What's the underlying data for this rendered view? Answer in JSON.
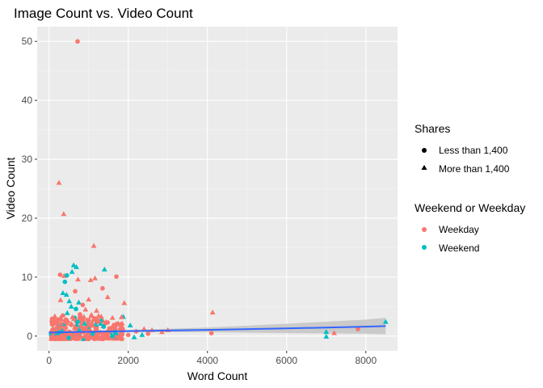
{
  "chart_data": {
    "type": "scatter",
    "title": "Image Count vs. Video Count",
    "xlabel": "Word Count",
    "ylabel": "Video Count",
    "xlim": [
      -300,
      8800
    ],
    "ylim": [
      -2.5,
      52.5
    ],
    "xticks": [
      "0",
      "2000",
      "4000",
      "6000",
      "8000"
    ],
    "xtick_values": [
      0,
      2000,
      4000,
      6000,
      8000
    ],
    "yticks": [
      "0",
      "10",
      "20",
      "30",
      "40",
      "50"
    ],
    "ytick_values": [
      0,
      10,
      20,
      30,
      40,
      50
    ],
    "grid": true,
    "background": "#ebebeb",
    "legend_position": "right",
    "legends": [
      {
        "title": "Shares",
        "entries": [
          {
            "label": "Less than 1,400",
            "shape": "circle"
          },
          {
            "label": "More than 1,400",
            "shape": "triangle"
          }
        ]
      },
      {
        "title": "Weekend or Weekday",
        "entries": [
          {
            "label": "Weekday",
            "color": "#F8766D"
          },
          {
            "label": "Weekend",
            "color": "#00BFC4"
          }
        ]
      }
    ],
    "colors": {
      "Weekday": "#F8766D",
      "Weekend": "#00BFC4",
      "trend": "#3366FF",
      "ribbon": "#c4c4c4"
    },
    "points": [
      {
        "x": 720,
        "y": 50,
        "shape": "circle",
        "group": "Weekday"
      },
      {
        "x": 250,
        "y": 26,
        "shape": "triangle",
        "group": "Weekday"
      },
      {
        "x": 370,
        "y": 20.7,
        "shape": "triangle",
        "group": "Weekday"
      },
      {
        "x": 1130,
        "y": 15.3,
        "shape": "triangle",
        "group": "Weekday"
      },
      {
        "x": 620,
        "y": 12,
        "shape": "triangle",
        "group": "Weekend"
      },
      {
        "x": 690,
        "y": 11.7,
        "shape": "triangle",
        "group": "Weekend"
      },
      {
        "x": 1400,
        "y": 11.3,
        "shape": "triangle",
        "group": "Weekend"
      },
      {
        "x": 580,
        "y": 10.9,
        "shape": "triangle",
        "group": "Weekend"
      },
      {
        "x": 280,
        "y": 10.4,
        "shape": "circle",
        "group": "Weekday"
      },
      {
        "x": 380,
        "y": 10.2,
        "shape": "triangle",
        "group": "Weekday"
      },
      {
        "x": 1700,
        "y": 10.1,
        "shape": "circle",
        "group": "Weekday"
      },
      {
        "x": 450,
        "y": 10.3,
        "shape": "circle",
        "group": "Weekend"
      },
      {
        "x": 1160,
        "y": 9.8,
        "shape": "triangle",
        "group": "Weekday"
      },
      {
        "x": 730,
        "y": 9.6,
        "shape": "triangle",
        "group": "Weekday"
      },
      {
        "x": 400,
        "y": 9.2,
        "shape": "circle",
        "group": "Weekend"
      },
      {
        "x": 1050,
        "y": 9.5,
        "shape": "triangle",
        "group": "Weekday"
      },
      {
        "x": 1350,
        "y": 8.1,
        "shape": "circle",
        "group": "Weekday"
      },
      {
        "x": 660,
        "y": 7.6,
        "shape": "circle",
        "group": "Weekday"
      },
      {
        "x": 350,
        "y": 7.3,
        "shape": "triangle",
        "group": "Weekend"
      },
      {
        "x": 440,
        "y": 7.0,
        "shape": "triangle",
        "group": "Weekend"
      },
      {
        "x": 1480,
        "y": 6.6,
        "shape": "triangle",
        "group": "Weekday"
      },
      {
        "x": 1000,
        "y": 6.2,
        "shape": "triangle",
        "group": "Weekday"
      },
      {
        "x": 290,
        "y": 6.1,
        "shape": "triangle",
        "group": "Weekday"
      },
      {
        "x": 510,
        "y": 5.9,
        "shape": "triangle",
        "group": "Weekend"
      },
      {
        "x": 750,
        "y": 5.7,
        "shape": "triangle",
        "group": "Weekend"
      },
      {
        "x": 850,
        "y": 5.3,
        "shape": "circle",
        "group": "Weekday"
      },
      {
        "x": 560,
        "y": 5.0,
        "shape": "triangle",
        "group": "Weekend"
      },
      {
        "x": 1900,
        "y": 5.6,
        "shape": "triangle",
        "group": "Weekday"
      },
      {
        "x": 680,
        "y": 4.6,
        "shape": "circle",
        "group": "Weekend"
      },
      {
        "x": 920,
        "y": 4.5,
        "shape": "triangle",
        "group": "Weekday"
      },
      {
        "x": 1200,
        "y": 4.3,
        "shape": "triangle",
        "group": "Weekday"
      },
      {
        "x": 4130,
        "y": 4.0,
        "shape": "triangle",
        "group": "Weekday"
      },
      {
        "x": 460,
        "y": 3.9,
        "shape": "triangle",
        "group": "Weekend"
      },
      {
        "x": 780,
        "y": 3.7,
        "shape": "circle",
        "group": "Weekday"
      },
      {
        "x": 1070,
        "y": 3.6,
        "shape": "triangle",
        "group": "Weekday"
      },
      {
        "x": 350,
        "y": 3.5,
        "shape": "circle",
        "group": "Weekday"
      },
      {
        "x": 1320,
        "y": 3.3,
        "shape": "triangle",
        "group": "Weekday"
      },
      {
        "x": 590,
        "y": 3.2,
        "shape": "triangle",
        "group": "Weekday"
      },
      {
        "x": 1600,
        "y": 3.1,
        "shape": "triangle",
        "group": "Weekday"
      },
      {
        "x": 810,
        "y": 2.9,
        "shape": "triangle",
        "group": "Weekday"
      },
      {
        "x": 230,
        "y": 2.8,
        "shape": "circle",
        "group": "Weekday"
      },
      {
        "x": 1000,
        "y": 2.7,
        "shape": "circle",
        "group": "Weekday"
      },
      {
        "x": 1250,
        "y": 2.6,
        "shape": "triangle",
        "group": "Weekday"
      },
      {
        "x": 480,
        "y": 2.5,
        "shape": "triangle",
        "group": "Weekday"
      },
      {
        "x": 720,
        "y": 2.4,
        "shape": "circle",
        "group": "Weekend"
      },
      {
        "x": 1480,
        "y": 2.3,
        "shape": "circle",
        "group": "Weekday"
      },
      {
        "x": 300,
        "y": 2.2,
        "shape": "triangle",
        "group": "Weekday"
      },
      {
        "x": 900,
        "y": 2.1,
        "shape": "triangle",
        "group": "Weekend"
      },
      {
        "x": 1800,
        "y": 2.0,
        "shape": "triangle",
        "group": "Weekday"
      },
      {
        "x": 560,
        "y": 1.9,
        "shape": "circle",
        "group": "Weekday"
      },
      {
        "x": 1100,
        "y": 1.8,
        "shape": "triangle",
        "group": "Weekday"
      },
      {
        "x": 200,
        "y": 1.7,
        "shape": "triangle",
        "group": "Weekday"
      },
      {
        "x": 1380,
        "y": 1.6,
        "shape": "circle",
        "group": "Weekend"
      },
      {
        "x": 650,
        "y": 1.5,
        "shape": "triangle",
        "group": "Weekday"
      },
      {
        "x": 2050,
        "y": 1.8,
        "shape": "triangle",
        "group": "Weekend"
      },
      {
        "x": 1650,
        "y": 1.5,
        "shape": "circle",
        "group": "Weekday"
      },
      {
        "x": 420,
        "y": 1.4,
        "shape": "circle",
        "group": "Weekday"
      },
      {
        "x": 860,
        "y": 1.3,
        "shape": "circle",
        "group": "Weekday"
      },
      {
        "x": 1200,
        "y": 1.2,
        "shape": "circle",
        "group": "Weekday"
      },
      {
        "x": 150,
        "y": 1.1,
        "shape": "circle",
        "group": "Weekday"
      },
      {
        "x": 2400,
        "y": 1.2,
        "shape": "triangle",
        "group": "Weekday"
      },
      {
        "x": 2600,
        "y": 1.0,
        "shape": "triangle",
        "group": "Weekday"
      },
      {
        "x": 760,
        "y": 1.0,
        "shape": "triangle",
        "group": "Weekend"
      },
      {
        "x": 1550,
        "y": 0.9,
        "shape": "triangle",
        "group": "Weekday"
      },
      {
        "x": 330,
        "y": 0.9,
        "shape": "triangle",
        "group": "Weekend"
      },
      {
        "x": 2200,
        "y": 0.8,
        "shape": "circle",
        "group": "Weekday"
      },
      {
        "x": 980,
        "y": 0.8,
        "shape": "circle",
        "group": "Weekday"
      },
      {
        "x": 2850,
        "y": 0.7,
        "shape": "triangle",
        "group": "Weekday"
      },
      {
        "x": 1850,
        "y": 0.7,
        "shape": "circle",
        "group": "Weekday"
      },
      {
        "x": 520,
        "y": 0.7,
        "shape": "circle",
        "group": "Weekday"
      },
      {
        "x": 3000,
        "y": 1.0,
        "shape": "triangle",
        "group": "Weekday"
      },
      {
        "x": 1300,
        "y": 0.6,
        "shape": "triangle",
        "group": "Weekday"
      },
      {
        "x": 250,
        "y": 0.6,
        "shape": "circle",
        "group": "Weekend"
      },
      {
        "x": 1700,
        "y": 0.5,
        "shape": "triangle",
        "group": "Weekend"
      },
      {
        "x": 680,
        "y": 0.5,
        "shape": "circle",
        "group": "Weekday"
      },
      {
        "x": 4100,
        "y": 0.5,
        "shape": "circle",
        "group": "Weekday"
      },
      {
        "x": 2500,
        "y": 0.4,
        "shape": "circle",
        "group": "Weekday"
      },
      {
        "x": 1100,
        "y": 0.4,
        "shape": "circle",
        "group": "Weekend"
      },
      {
        "x": 420,
        "y": 0.3,
        "shape": "triangle",
        "group": "Weekday"
      },
      {
        "x": 7200,
        "y": 0.5,
        "shape": "triangle",
        "group": "Weekday"
      },
      {
        "x": 7000,
        "y": 0.7,
        "shape": "triangle",
        "group": "Weekend"
      },
      {
        "x": 7800,
        "y": 1.2,
        "shape": "circle",
        "group": "Weekday"
      },
      {
        "x": 8500,
        "y": 2.4,
        "shape": "triangle",
        "group": "Weekend"
      },
      {
        "x": 2350,
        "y": 0.2,
        "shape": "triangle",
        "group": "Weekend"
      },
      {
        "x": 2000,
        "y": 0.2,
        "shape": "circle",
        "group": "Weekday"
      },
      {
        "x": 1450,
        "y": 0.2,
        "shape": "circle",
        "group": "Weekday"
      },
      {
        "x": 900,
        "y": 0.1,
        "shape": "triangle",
        "group": "Weekday"
      },
      {
        "x": 100,
        "y": 0.1,
        "shape": "triangle",
        "group": "Weekday"
      },
      {
        "x": 600,
        "y": 0.0,
        "shape": "circle",
        "group": "Weekday"
      },
      {
        "x": 1250,
        "y": 0.0,
        "shape": "triangle",
        "group": "Weekday"
      },
      {
        "x": 1600,
        "y": 0.0,
        "shape": "circle",
        "group": "Weekend"
      },
      {
        "x": 350,
        "y": 0.0,
        "shape": "circle",
        "group": "Weekday"
      },
      {
        "x": 2150,
        "y": -0.2,
        "shape": "triangle",
        "group": "Weekend"
      },
      {
        "x": 7000,
        "y": -0.1,
        "shape": "triangle",
        "group": "Weekend"
      },
      {
        "x": 800,
        "y": -0.2,
        "shape": "circle",
        "group": "Weekday"
      },
      {
        "x": 200,
        "y": -0.2,
        "shape": "circle",
        "group": "Weekday"
      },
      {
        "x": 1050,
        "y": -0.3,
        "shape": "triangle",
        "group": "Weekday"
      },
      {
        "x": 500,
        "y": -0.3,
        "shape": "circle",
        "group": "Weekend"
      }
    ],
    "dense_cluster": {
      "x_range": [
        50,
        1900
      ],
      "y_range": [
        -0.5,
        3.5
      ],
      "count": 260,
      "weekend_ratio": 0.12
    },
    "trend": {
      "x": [
        0,
        2000,
        4000,
        6000,
        8000,
        8500
      ],
      "y": [
        0.6,
        0.85,
        1.05,
        1.3,
        1.6,
        1.7
      ],
      "ci_lower": [
        0.3,
        0.65,
        0.65,
        0.5,
        0.4,
        0.3
      ],
      "ci_upper": [
        0.9,
        1.05,
        1.45,
        2.1,
        2.8,
        3.1
      ]
    }
  }
}
